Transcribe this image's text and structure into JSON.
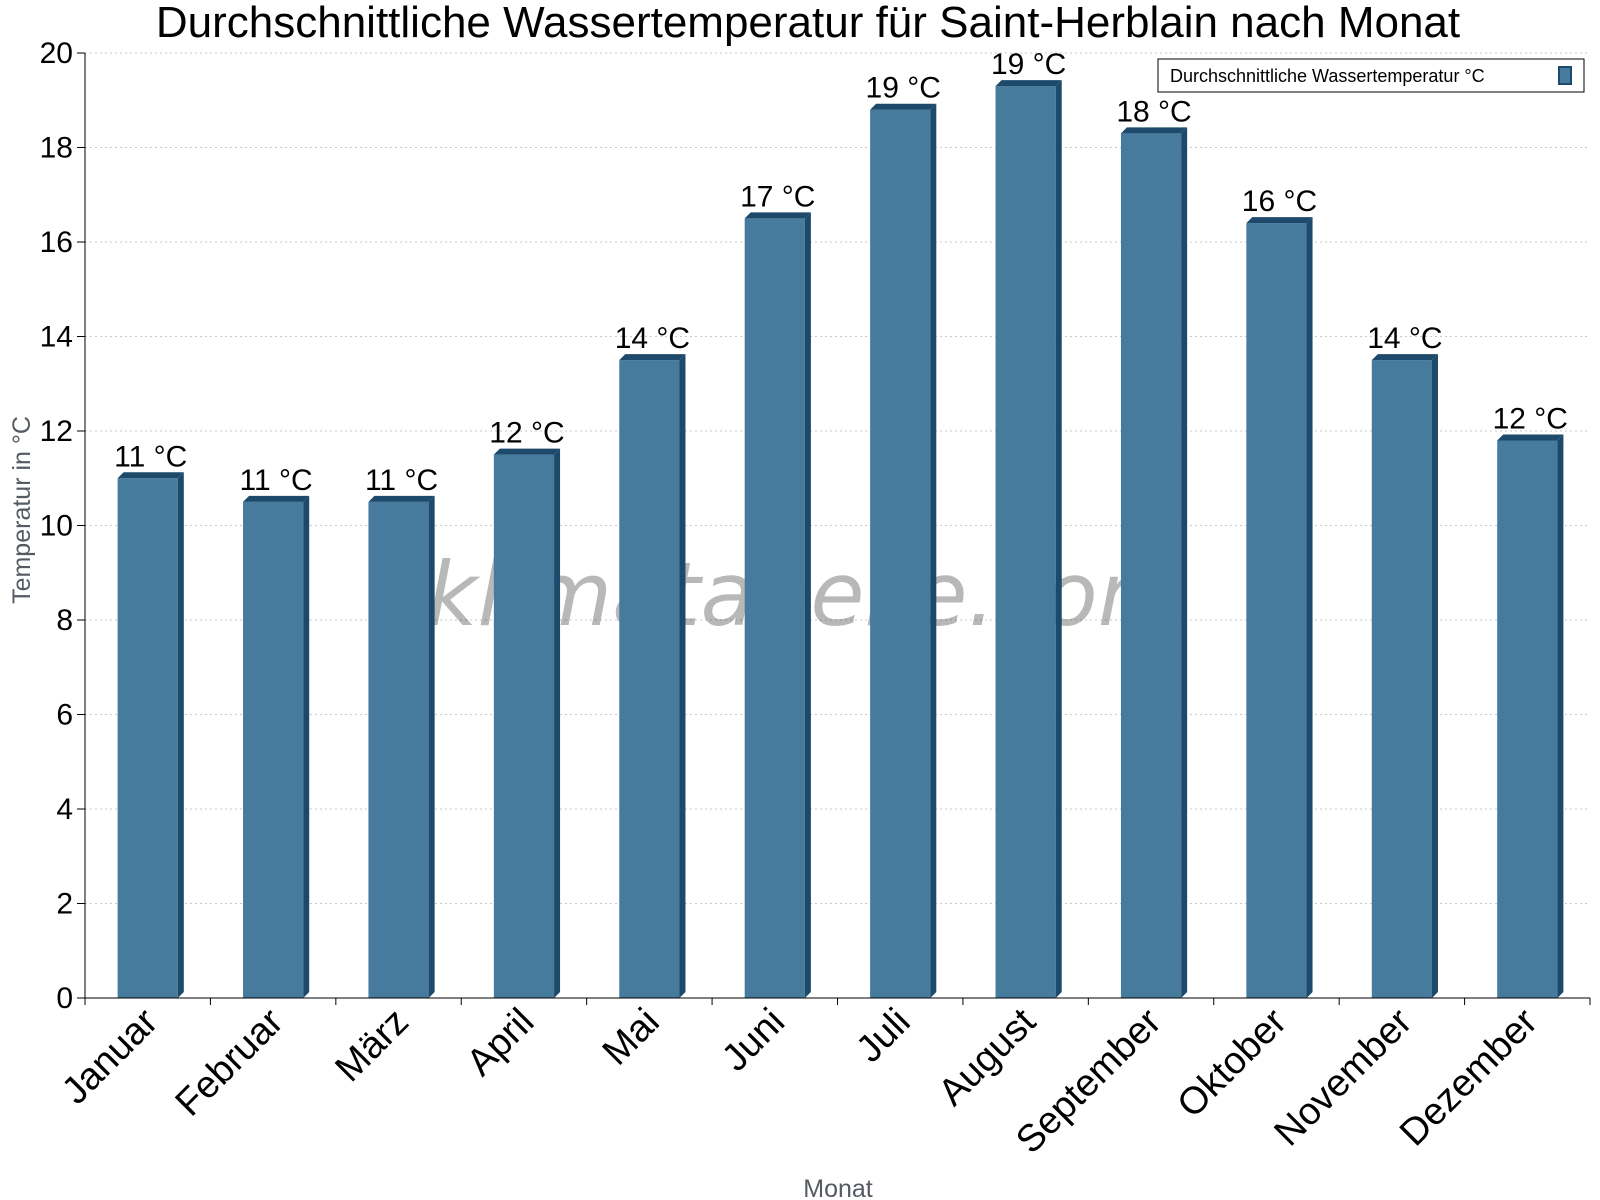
{
  "chart_data": {
    "type": "bar",
    "title": "Durchschnittliche Wassertemperatur für Saint-Herblain nach Monat",
    "xlabel": "Monat",
    "ylabel": "Temperatur in °C",
    "categories": [
      "Januar",
      "Februar",
      "März",
      "April",
      "Mai",
      "Juni",
      "Juli",
      "August",
      "September",
      "Oktober",
      "November",
      "Dezember"
    ],
    "series": [
      {
        "name": "Durchschnittliche Wassertemperatur °C",
        "values": [
          11.0,
          10.5,
          10.5,
          11.5,
          13.5,
          16.5,
          18.8,
          19.3,
          18.3,
          16.4,
          13.5,
          11.8
        ],
        "labels": [
          "11 °C",
          "11 °C",
          "11 °C",
          "12 °C",
          "14 °C",
          "17 °C",
          "19 °C",
          "19 °C",
          "18 °C",
          "16 °C",
          "14 °C",
          "12 °C"
        ],
        "color": "#467b9e",
        "edge_color": "#1d4a6b"
      }
    ],
    "ylim": [
      0,
      20
    ],
    "yticks": [
      "0",
      "2",
      "4",
      "6",
      "8",
      "10",
      "12",
      "14",
      "16",
      "18",
      "20"
    ],
    "grid": true,
    "legend_position": "top-right",
    "watermark": "klimatabelle.com"
  }
}
